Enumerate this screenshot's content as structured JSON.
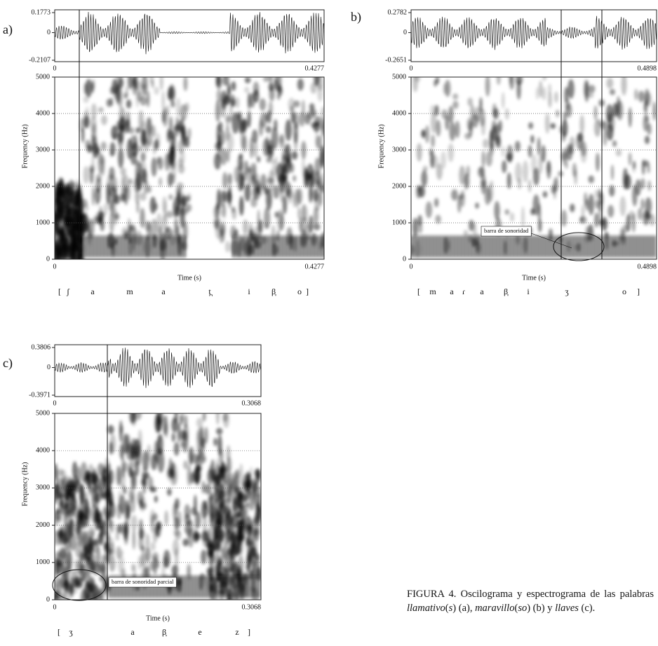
{
  "panels": [
    {
      "label": "a)",
      "osc_yticks": [
        "0.1773",
        "0",
        "-0.2107"
      ],
      "osc_xticks": [
        "0",
        "0.4277"
      ],
      "spec_yticks": [
        "5000",
        "4000",
        "3000",
        "2000",
        "1000",
        "0"
      ],
      "y_label": "Frequency (Hz)",
      "spec_xticks": [
        "0",
        "0.4277"
      ],
      "x_label": "Time (s)",
      "transcription": [
        "[",
        "ʃ",
        "a",
        "m",
        "a",
        "t̪",
        "i",
        "β̞",
        "o",
        "]"
      ]
    },
    {
      "label": "b)",
      "osc_yticks": [
        "0.2782",
        "0",
        "-0.2651"
      ],
      "osc_xticks": [
        "0",
        "0.4898"
      ],
      "spec_yticks": [
        "5000",
        "4000",
        "3000",
        "2000",
        "1000",
        "0"
      ],
      "y_label": "Frequency (Hz)",
      "spec_xticks": [
        "0",
        "0.4898"
      ],
      "x_label": "Time (s)",
      "transcription": [
        "[",
        "m",
        "a",
        "ɾ",
        "a",
        "β̞",
        "i",
        "ʒ",
        "o",
        "]"
      ],
      "annotation": "barra de sonoridad"
    },
    {
      "label": "c)",
      "osc_yticks": [
        "0.3806",
        "0",
        "-0.3971"
      ],
      "osc_xticks": [
        "0",
        "0.3068"
      ],
      "spec_yticks": [
        "5000",
        "4000",
        "3000",
        "2000",
        "1000",
        "0"
      ],
      "y_label": "Frequency (Hz)",
      "spec_xticks": [
        "0",
        "0.3068"
      ],
      "x_label": "Time (s)",
      "transcription": [
        "[",
        "ʒ",
        "a",
        "β̞",
        "e",
        "z",
        "]"
      ],
      "annotation": "barra de sonoridad parcial"
    }
  ],
  "caption": [
    "FIGURA 4.",
    " Oscilograma y espectrograma de las palabras ",
    "llamativo",
    "(",
    "s",
    ") (a), ",
    "maravillo",
    "(",
    "so",
    ") (b) y ",
    "llaves",
    " (c)."
  ]
}
